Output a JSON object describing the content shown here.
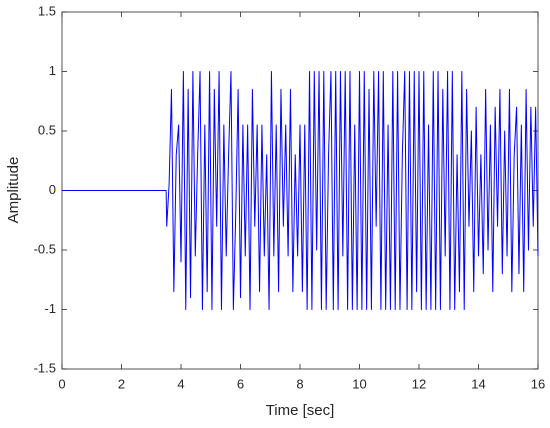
{
  "chart_data": {
    "type": "line",
    "xlabel": "Time [sec]",
    "ylabel": "Amplitude",
    "xlim": [
      0,
      16
    ],
    "xticks": [
      0,
      2,
      4,
      6,
      8,
      10,
      12,
      14,
      16
    ],
    "ylim": [
      -1.5,
      1.5
    ],
    "yticks": [
      -1.5,
      -1,
      -0.5,
      0,
      0.5,
      1,
      1.5
    ],
    "grid": false,
    "x": [
      0,
      3.5,
      3.52,
      3.6,
      3.68,
      3.76,
      3.84,
      3.92,
      4,
      4.08,
      4.16,
      4.24,
      4.32,
      4.4,
      4.48,
      4.56,
      4.64,
      4.72,
      4.8,
      4.88,
      4.96,
      5.04,
      5.12,
      5.2,
      5.28,
      5.36,
      5.44,
      5.52,
      5.6,
      5.68,
      5.76,
      5.84,
      5.92,
      6,
      6.08,
      6.16,
      6.24,
      6.32,
      6.4,
      6.48,
      6.56,
      6.64,
      6.72,
      6.8,
      6.88,
      6.96,
      7.04,
      7.12,
      7.2,
      7.28,
      7.36,
      7.44,
      7.52,
      7.6,
      7.68,
      7.76,
      7.84,
      7.92,
      8,
      8.08,
      8.16,
      8.24,
      8.32,
      8.4,
      8.48,
      8.56,
      8.64,
      8.72,
      8.8,
      8.88,
      8.96,
      9.04,
      9.12,
      9.2,
      9.28,
      9.36,
      9.44,
      9.52,
      9.6,
      9.68,
      9.76,
      9.84,
      9.92,
      10,
      10.08,
      10.16,
      10.24,
      10.32,
      10.4,
      10.48,
      10.56,
      10.64,
      10.72,
      10.8,
      10.88,
      10.96,
      11.04,
      11.12,
      11.2,
      11.28,
      11.36,
      11.44,
      11.52,
      11.6,
      11.68,
      11.76,
      11.84,
      11.92,
      12,
      12.08,
      12.16,
      12.24,
      12.32,
      12.4,
      12.48,
      12.56,
      12.64,
      12.72,
      12.8,
      12.88,
      12.96,
      13.04,
      13.12,
      13.2,
      13.28,
      13.36,
      13.44,
      13.52,
      13.6,
      13.68,
      13.76,
      13.84,
      13.92,
      14,
      14.08,
      14.16,
      14.24,
      14.32,
      14.4,
      14.48,
      14.56,
      14.64,
      14.72,
      14.8,
      14.88,
      14.96,
      15.04,
      15.12,
      15.2,
      15.28,
      15.36,
      15.44,
      15.52,
      15.6,
      15.68,
      15.76,
      15.84,
      15.92,
      16
    ],
    "series": [
      {
        "color": "#0000ff",
        "values": [
          0,
          0,
          -0.3,
          0.05,
          0.85,
          -0.85,
          0.3,
          0.55,
          -0.6,
          1,
          -1,
          0.85,
          -0.9,
          1,
          -0.55,
          0.3,
          1,
          -1,
          0.55,
          -0.85,
          1,
          -1,
          0.85,
          -0.3,
          1,
          -1,
          0.55,
          -0.55,
          0.3,
          1,
          -1,
          -0.2,
          0.85,
          -0.9,
          0.55,
          -0.55,
          0.55,
          -1,
          0.85,
          -0.3,
          0.55,
          -0.85,
          0.55,
          -0.55,
          0.3,
          -1,
          1,
          -0.55,
          0.55,
          -0.85,
          0.85,
          -0.3,
          0.55,
          -0.55,
          0.85,
          -0.85,
          0.3,
          -0.55,
          0.55,
          -0.85,
          0.55,
          -1,
          1,
          -1,
          1,
          -0.5,
          1,
          -1,
          1,
          -1,
          0.3,
          1,
          -1,
          1,
          -1,
          1,
          -0.55,
          1,
          -1,
          1,
          -1,
          0.55,
          -1,
          1,
          -1,
          1,
          -1,
          0.85,
          -1,
          1,
          -0.3,
          1,
          -1,
          1,
          -1,
          0.55,
          -1,
          1,
          -1,
          1,
          -1,
          0.3,
          1,
          -1,
          1,
          -1,
          1,
          -0.85,
          1,
          -1,
          1,
          -1,
          0.55,
          -1,
          1,
          -1,
          1,
          -1,
          0.85,
          -0.55,
          1,
          -1,
          1,
          -1,
          0.3,
          -0.85,
          1,
          -1,
          0.85,
          -0.3,
          0.5,
          -0.85,
          0.7,
          -0.55,
          0.3,
          -0.7,
          0.85,
          -0.5,
          0.55,
          -0.85,
          0.7,
          -0.3,
          0.85,
          -0.7,
          0.5,
          -0.55,
          0.85,
          -0.85,
          0.3,
          0.7,
          -0.7,
          0.55,
          -0.85,
          0.85,
          -0.5,
          0.7,
          -0.3,
          0.7,
          -0.55
        ]
      }
    ]
  }
}
